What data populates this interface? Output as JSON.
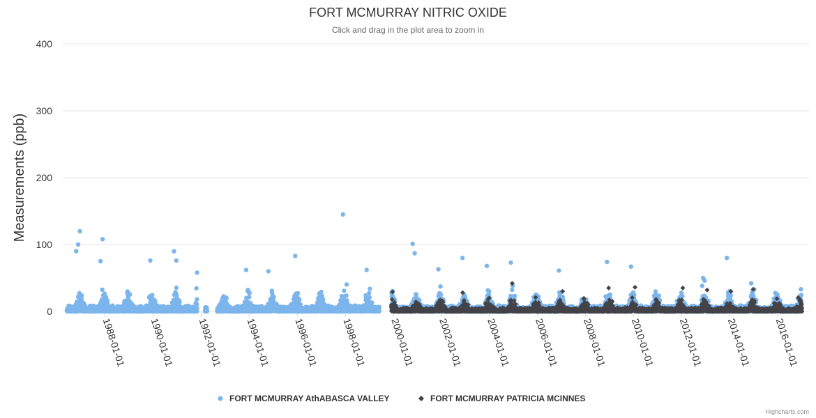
{
  "chart_data": {
    "type": "scatter",
    "title": "FORT MCMURRAY NITRIC OXIDE",
    "subtitle": "Click and drag in the plot area to zoom in",
    "ylabel": "Measurements (ppb)",
    "xlabel": "",
    "ylim": [
      0,
      400
    ],
    "yticks": [
      0,
      100,
      200,
      300,
      400
    ],
    "xticks": [
      "1988-01-01",
      "1990-01-01",
      "1992-01-01",
      "1994-01-01",
      "1996-01-01",
      "1998-01-01",
      "2000-01-01",
      "2002-01-01",
      "2004-01-01",
      "2006-01-01",
      "2008-01-01",
      "2010-01-01",
      "2012-01-01",
      "2014-01-01",
      "2016-01-01"
    ],
    "grid": true,
    "legend_position": "bottom",
    "series": [
      {
        "name": "FORT MCMURRAY AthABASCA VALLEY",
        "color": "#7cb5ec",
        "marker": "circle",
        "x_range": [
          "1986-06-01",
          "2016-12-31"
        ],
        "data_gaps": [
          [
            "1991-11-01",
            "1992-03-01"
          ],
          [
            "1992-04-01",
            "1992-09-01"
          ],
          [
            "1999-06-01",
            "1999-12-01"
          ]
        ],
        "notable_peaks": [
          [
            "1986-12-15",
            120
          ],
          [
            "1986-11-20",
            100
          ],
          [
            "1986-10-20",
            90
          ],
          [
            "1987-11-25",
            108
          ],
          [
            "1987-10-25",
            75
          ],
          [
            "1989-11-20",
            76
          ],
          [
            "1990-11-15",
            90
          ],
          [
            "1990-12-20",
            76
          ],
          [
            "1991-11-01",
            58
          ],
          [
            "1993-11-15",
            62
          ],
          [
            "1994-10-20",
            60
          ],
          [
            "1995-12-01",
            83
          ],
          [
            "1997-11-25",
            145
          ],
          [
            "1998-11-20",
            62
          ],
          [
            "2000-10-20",
            101
          ],
          [
            "2000-11-20",
            87
          ],
          [
            "2001-11-15",
            63
          ],
          [
            "2002-11-15",
            80
          ],
          [
            "2003-11-20",
            68
          ],
          [
            "2004-11-20",
            73
          ],
          [
            "2006-11-20",
            61
          ],
          [
            "2008-11-20",
            74
          ],
          [
            "2009-11-20",
            67
          ],
          [
            "2012-11-20",
            50
          ],
          [
            "2013-11-15",
            80
          ],
          [
            "2014-11-20",
            42
          ]
        ]
      },
      {
        "name": "FORT MCMURRAY PATRICIA MCINNES",
        "color": "#434348",
        "marker": "diamond",
        "x_range": [
          "1999-12-01",
          "2016-12-31"
        ],
        "notable_peaks": [
          [
            "2004-12-10",
            42
          ],
          [
            "2007-01-15",
            30
          ],
          [
            "2008-12-15",
            35
          ],
          [
            "2010-01-20",
            36
          ],
          [
            "2012-01-15",
            35
          ],
          [
            "2013-01-20",
            32
          ],
          [
            "2014-01-15",
            30
          ],
          [
            "2014-12-20",
            33
          ]
        ]
      }
    ]
  },
  "credits": "Highcharts.com"
}
